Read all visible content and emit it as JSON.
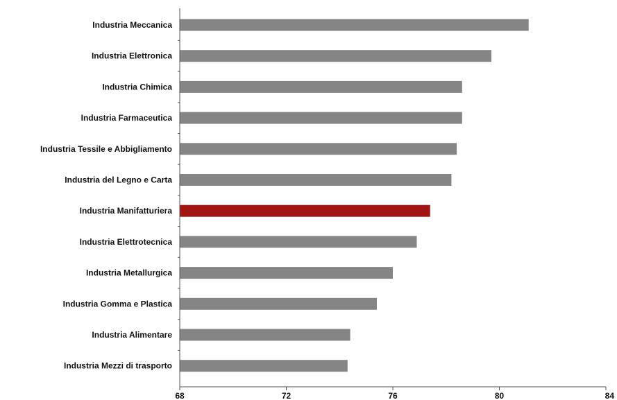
{
  "chart_data": {
    "type": "bar",
    "orientation": "horizontal",
    "title": "",
    "xlabel": "",
    "ylabel": "",
    "xlim": [
      68,
      84
    ],
    "xticks": [
      68,
      72,
      76,
      80,
      84
    ],
    "grid": false,
    "legend": "none",
    "categories": [
      "Industria Meccanica",
      "Industria Elettronica",
      "Industria Chimica",
      "Industria Farmaceutica",
      "Industria Tessile e Abbigliamento",
      "Industria del Legno e Carta",
      "Industria Manifatturiera",
      "Industria Elettrotecnica",
      "Industria Metallurgica",
      "Industria Gomma e Plastica",
      "Industria Alimentare",
      "Industria Mezzi di trasporto"
    ],
    "values": [
      81.1,
      79.7,
      78.6,
      78.6,
      78.4,
      78.2,
      77.4,
      76.9,
      76.0,
      75.4,
      74.4,
      74.3
    ],
    "highlight_category": "Industria Manifatturiera",
    "colors": {
      "bar": "#858585",
      "highlight": "#a01414",
      "axis": "#555555"
    }
  }
}
